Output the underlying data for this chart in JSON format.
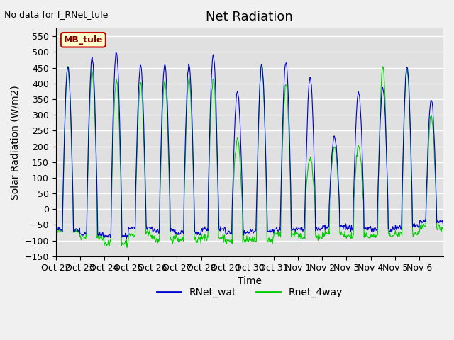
{
  "title": "Net Radiation",
  "xlabel": "Time",
  "ylabel": "Solar Radiation (W/m2)",
  "no_data_text": "No data for f_RNet_tule",
  "location_label": "MB_tule",
  "ylim": [
    -150,
    575
  ],
  "yticks": [
    -150,
    -100,
    -50,
    0,
    50,
    100,
    150,
    200,
    250,
    300,
    350,
    400,
    450,
    500,
    550
  ],
  "xtick_labels": [
    "Oct 22",
    "Oct 23",
    "Oct 24",
    "Oct 25",
    "Oct 26",
    "Oct 27",
    "Oct 28",
    "Oct 29",
    "Oct 30",
    "Oct 31",
    "Nov 1",
    "Nov 2",
    "Nov 3",
    "Nov 4",
    "Nov 5",
    "Nov 6"
  ],
  "line1_color": "#0000cc",
  "line2_color": "#00cc00",
  "line1_label": "RNet_wat",
  "line2_label": "Rnet_4way",
  "background_color": "#e0e0e0",
  "grid_color": "#ffffff",
  "title_fontsize": 13,
  "label_fontsize": 10,
  "tick_fontsize": 9,
  "location_box_facecolor": "#ffffcc",
  "location_box_edgecolor": "#cc0000"
}
